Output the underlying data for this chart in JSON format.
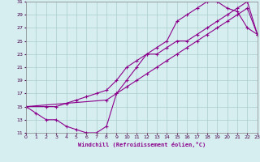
{
  "xlabel": "Windchill (Refroidissement éolien,°C)",
  "background_color": "#d6eef0",
  "grid_color": "#aacccc",
  "line_color": "#8b008b",
  "xlim": [
    0,
    23
  ],
  "ylim": [
    11,
    31
  ],
  "xticks": [
    0,
    1,
    2,
    3,
    4,
    5,
    6,
    7,
    8,
    9,
    10,
    11,
    12,
    13,
    14,
    15,
    16,
    17,
    18,
    19,
    20,
    21,
    22,
    23
  ],
  "yticks": [
    11,
    13,
    15,
    17,
    19,
    21,
    23,
    25,
    27,
    29,
    31
  ],
  "line1_x": [
    0,
    1,
    2,
    3,
    4,
    5,
    6,
    7,
    8,
    9,
    10,
    11,
    12,
    13,
    14,
    15,
    16,
    17,
    18,
    19,
    20,
    21,
    22,
    23
  ],
  "line1_y": [
    15,
    14,
    13,
    13,
    12,
    11.5,
    11,
    11,
    12,
    17,
    19,
    21,
    23,
    24,
    25,
    28,
    29,
    30,
    31,
    31,
    30,
    29.5,
    27,
    26
  ],
  "line2_x": [
    0,
    2,
    3,
    4,
    5,
    6,
    7,
    8,
    9,
    10,
    11,
    12,
    13,
    14,
    15,
    16,
    17,
    18,
    19,
    20,
    21,
    22,
    23
  ],
  "line2_y": [
    15,
    15,
    15,
    15.5,
    16,
    16.5,
    17,
    17.5,
    19,
    21,
    22,
    23,
    23,
    24,
    25,
    25,
    26,
    27,
    28,
    29,
    30,
    31,
    26
  ],
  "line3_x": [
    0,
    8,
    9,
    10,
    11,
    12,
    13,
    14,
    15,
    16,
    17,
    18,
    19,
    20,
    21,
    22,
    23
  ],
  "line3_y": [
    15,
    16,
    17,
    18,
    19,
    20,
    21,
    22,
    23,
    24,
    25,
    26,
    27,
    28,
    29,
    30,
    26
  ]
}
